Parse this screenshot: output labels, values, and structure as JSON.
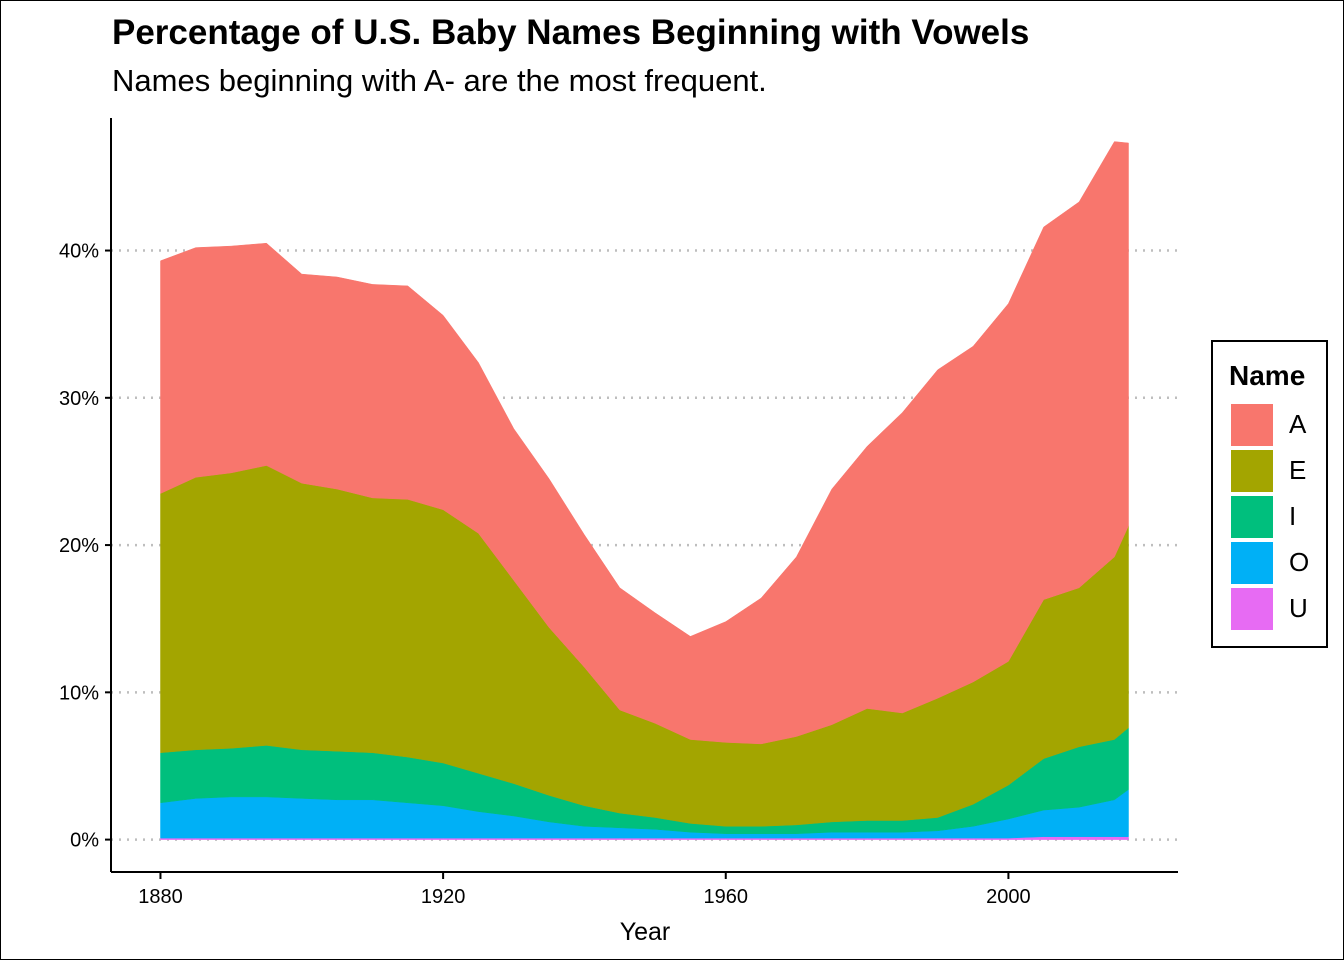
{
  "chart_data": {
    "type": "area",
    "stacked": true,
    "title": "Percentage of U.S. Baby Names Beginning with Vowels",
    "subtitle": "Names beginning with A- are the most frequent.",
    "xlabel": "Year",
    "ylabel": "",
    "xlim": [
      1873,
      2024
    ],
    "ylim": [
      -2.2,
      49
    ],
    "x_ticks": [
      1880,
      1920,
      1960,
      2000
    ],
    "y_ticks": [
      0,
      10,
      20,
      30,
      40
    ],
    "y_tick_labels": [
      "0%",
      "10%",
      "20%",
      "30%",
      "40%"
    ],
    "grid": "horizontal dotted at y ticks",
    "legend": {
      "title": "Name",
      "position": "right"
    },
    "x": [
      1880,
      1885,
      1890,
      1895,
      1900,
      1905,
      1910,
      1915,
      1920,
      1925,
      1930,
      1935,
      1940,
      1945,
      1950,
      1955,
      1960,
      1965,
      1970,
      1975,
      1980,
      1985,
      1990,
      1995,
      2000,
      2005,
      2010,
      2015,
      2017
    ],
    "series": [
      {
        "name": "U",
        "color": "#E76BF3",
        "values": [
          0.1,
          0.1,
          0.1,
          0.1,
          0.1,
          0.1,
          0.1,
          0.1,
          0.1,
          0.1,
          0.1,
          0.1,
          0.1,
          0.1,
          0.1,
          0.1,
          0.1,
          0.1,
          0.1,
          0.1,
          0.1,
          0.1,
          0.1,
          0.1,
          0.1,
          0.2,
          0.2,
          0.2,
          0.2
        ]
      },
      {
        "name": "O",
        "color": "#00B0F6",
        "values": [
          2.4,
          2.7,
          2.8,
          2.8,
          2.7,
          2.6,
          2.6,
          2.4,
          2.2,
          1.8,
          1.5,
          1.1,
          0.8,
          0.7,
          0.6,
          0.4,
          0.3,
          0.3,
          0.3,
          0.4,
          0.4,
          0.4,
          0.5,
          0.8,
          1.3,
          1.8,
          2.0,
          2.5,
          3.2
        ]
      },
      {
        "name": "I",
        "color": "#00BF7D",
        "values": [
          3.4,
          3.3,
          3.3,
          3.5,
          3.3,
          3.3,
          3.2,
          3.1,
          2.9,
          2.6,
          2.2,
          1.8,
          1.4,
          1.0,
          0.8,
          0.6,
          0.5,
          0.5,
          0.6,
          0.7,
          0.8,
          0.8,
          0.9,
          1.5,
          2.3,
          3.5,
          4.1,
          4.1,
          4.2
        ]
      },
      {
        "name": "E",
        "color": "#A3A500",
        "values": [
          17.6,
          18.5,
          18.7,
          19.0,
          18.1,
          17.8,
          17.3,
          17.5,
          17.2,
          16.3,
          13.8,
          11.4,
          9.4,
          7.0,
          6.4,
          5.7,
          5.7,
          5.6,
          6.0,
          6.6,
          7.6,
          7.3,
          8.1,
          8.3,
          8.4,
          10.8,
          10.8,
          12.4,
          13.7
        ]
      },
      {
        "name": "A",
        "color": "#F8766D",
        "values": [
          15.8,
          15.6,
          15.4,
          15.1,
          14.2,
          14.4,
          14.5,
          14.5,
          13.2,
          11.6,
          10.3,
          10.1,
          9.0,
          8.3,
          7.5,
          7.0,
          8.2,
          9.9,
          12.2,
          16.0,
          17.8,
          20.4,
          22.3,
          22.8,
          24.3,
          25.3,
          26.2,
          28.2,
          26.0
        ]
      }
    ]
  },
  "legend_labels": {
    "title": "Name",
    "items": [
      "A",
      "E",
      "I",
      "O",
      "U"
    ]
  }
}
